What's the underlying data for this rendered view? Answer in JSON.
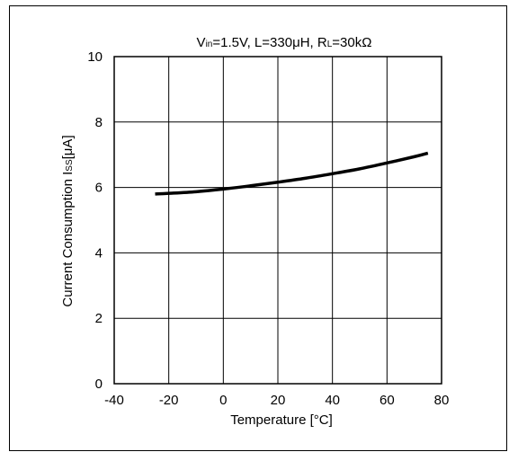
{
  "chart_data": {
    "type": "line",
    "title_parts": [
      "V",
      "in",
      "=1.5V, L=330μH, R",
      "L",
      "=30kΩ"
    ],
    "xlabel": "Temperature  [°C]",
    "ylabel_parts": [
      "Current Consumption  I",
      "SS",
      "[μA]"
    ],
    "xlim": [
      -40,
      80
    ],
    "ylim": [
      0,
      10
    ],
    "xticks": [
      "-40",
      "-20",
      "0",
      "20",
      "40",
      "60",
      "80"
    ],
    "yticks": [
      "0",
      "2",
      "4",
      "6",
      "8",
      "10"
    ],
    "grid": true,
    "series": [
      {
        "x": [
          -25,
          -20,
          -10,
          0,
          10,
          20,
          30,
          40,
          50,
          60,
          70,
          75
        ],
        "y": [
          5.8,
          5.82,
          5.87,
          5.95,
          6.05,
          6.16,
          6.28,
          6.42,
          6.57,
          6.75,
          6.94,
          7.05
        ]
      }
    ]
  }
}
